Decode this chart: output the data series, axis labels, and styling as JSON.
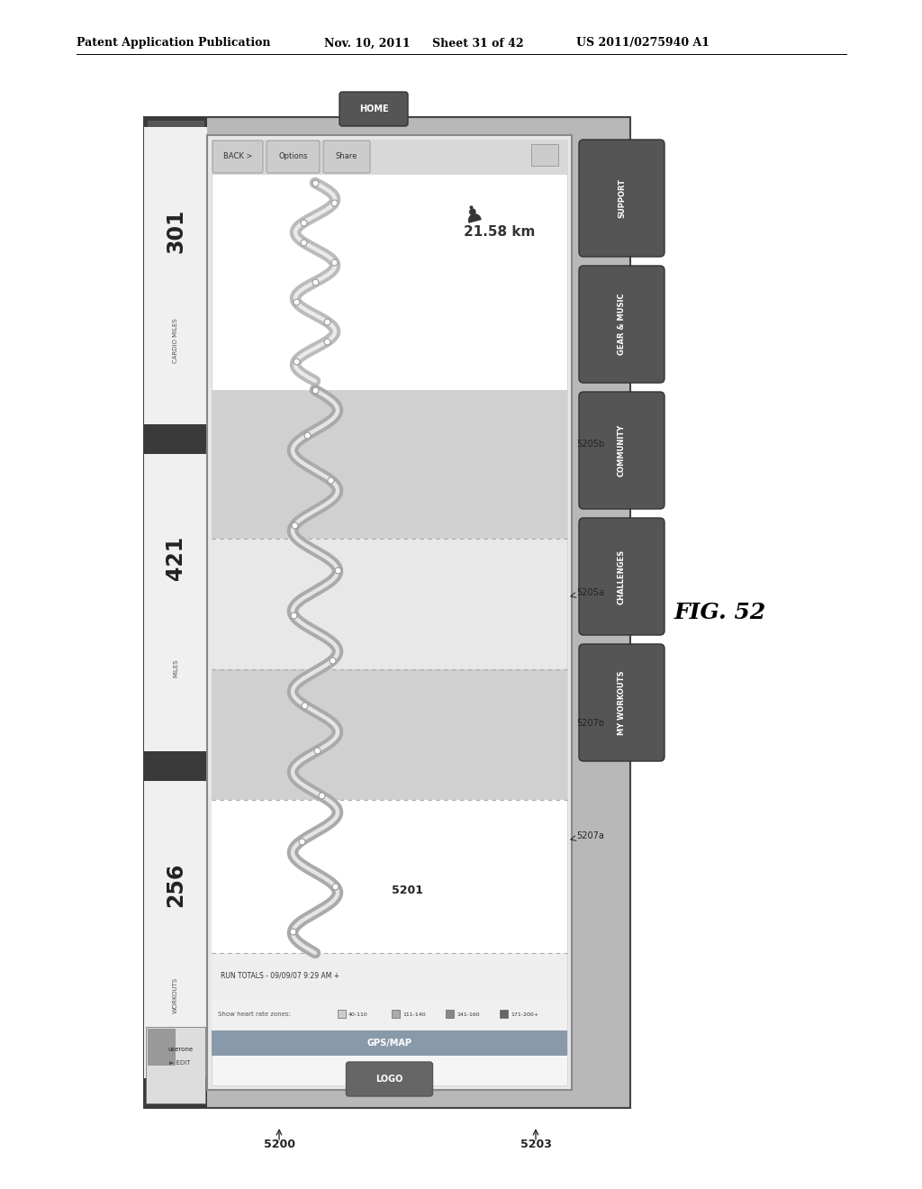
{
  "bg_color": "#ffffff",
  "header_text1": "Patent Application Publication",
  "header_text2": "Nov. 10, 2011",
  "header_text3": "Sheet 31 of 42",
  "header_text4": "US 2011/0275940 A1",
  "fig_label": "FIG. 52",
  "outer_bg": "#b8b8b8",
  "left_sidebar_dark": "#3a3a3a",
  "left_sidebar_white": "#f0f0f0",
  "right_sidebar_btn": "#555555",
  "center_panel_bg": "#f5f5f5",
  "top_button": "HOME",
  "bottom_button": "LOGO",
  "user_label": "userone",
  "edit_label": "► EDIT",
  "back_button": "BACK >",
  "distance_text": "21.58 km",
  "totals_text": "RUN TOTALS - 09/09/07 9:29 AM +",
  "show_hr_text": "Show heart rate zones:",
  "hr_zones": [
    "40-110",
    "111-140",
    "141-160",
    "171-200+"
  ],
  "sidebar_stats": [
    [
      "256",
      "WORKOUTS"
    ],
    [
      "421",
      "MILES"
    ],
    [
      "301",
      "CARDIO MILES"
    ]
  ],
  "right_sidebar_labels": [
    "SUPPORT",
    "GEAR & MUSIC",
    "COMMUNITY",
    "CHALLENGES",
    "MY WORKOUTS"
  ],
  "label_ids": [
    "5200",
    "5201",
    "5203",
    "5207a",
    "5207b",
    "5205a",
    "5205b"
  ],
  "zone_bg_colors": [
    "#ffffff",
    "#e0e0e0",
    "#c8c8c8",
    "#b8b8b8"
  ],
  "gps_bar_color": "#8899aa",
  "route_fill": "#cccccc",
  "route_edge": "#999999"
}
